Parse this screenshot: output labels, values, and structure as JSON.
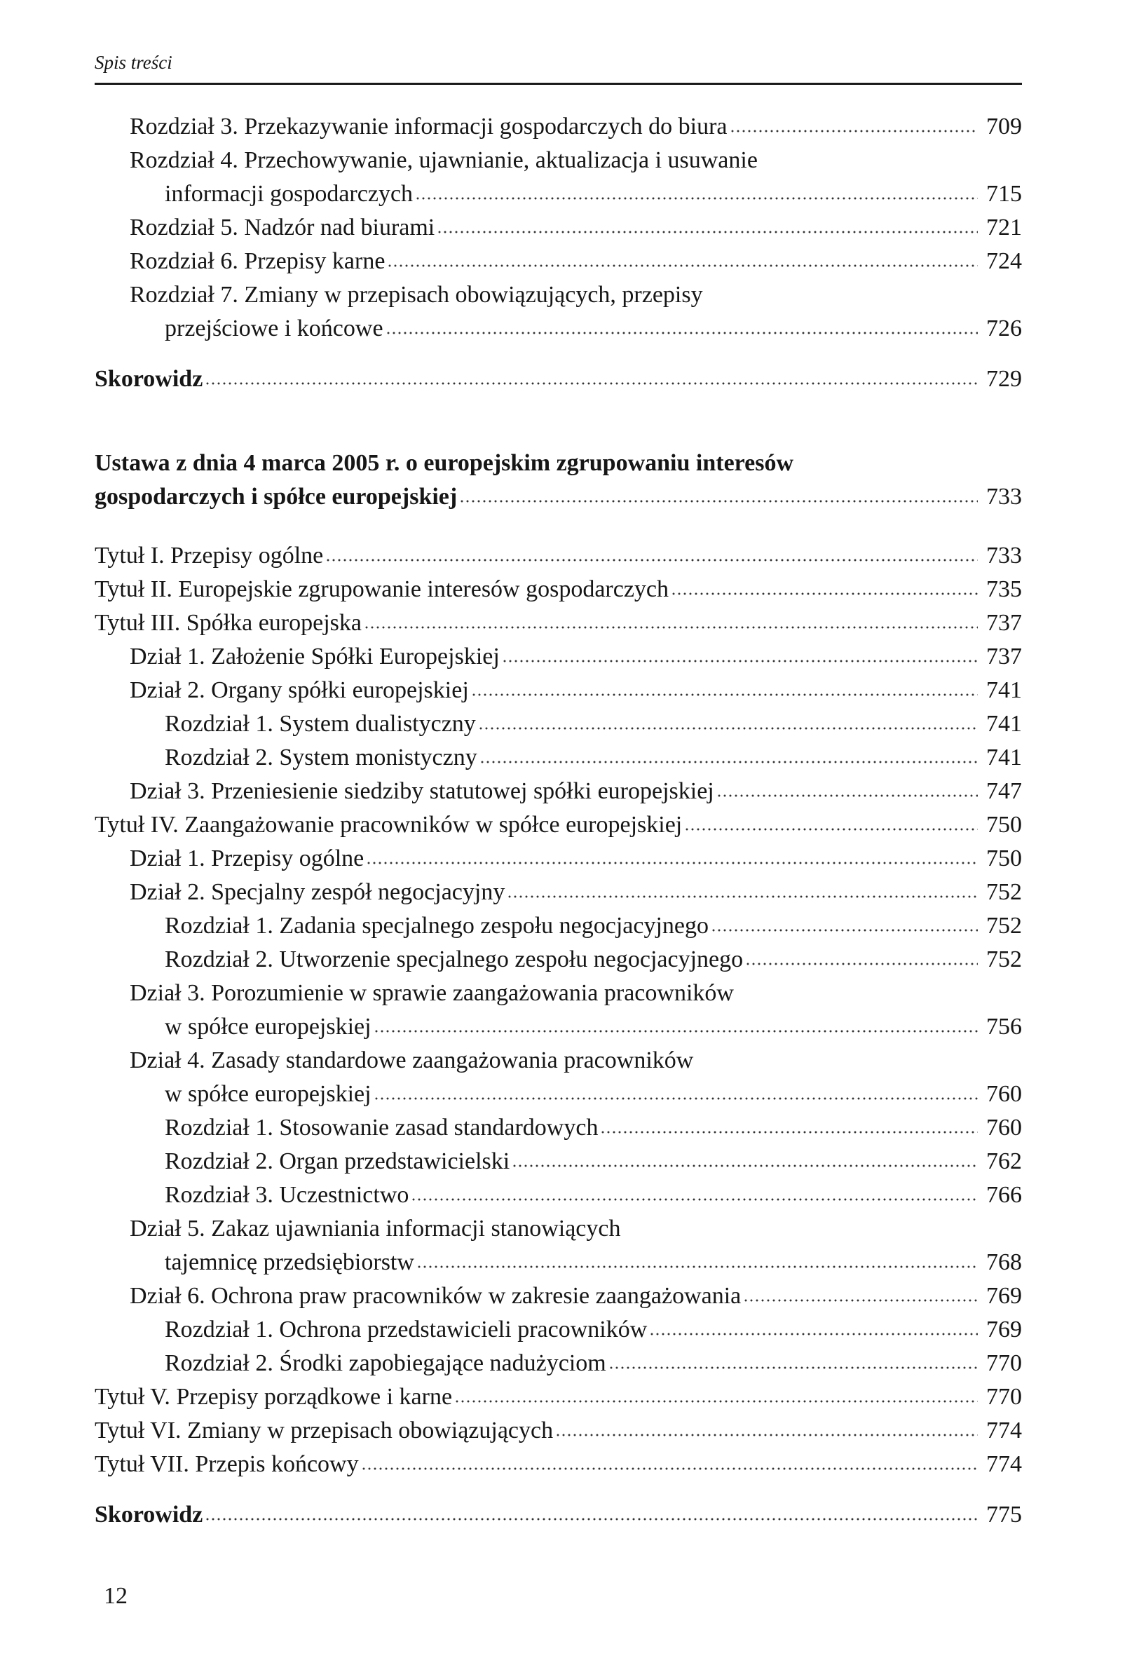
{
  "running_head": "Spis treści",
  "page_number": "12",
  "entries": [
    {
      "text": "Rozdział 3. Przekazywanie informacji gospodarczych do biura",
      "page": "709",
      "level": 1
    },
    {
      "text": "Rozdział 4. Przechowywanie, ujawnianie, aktualizacja i usuwanie",
      "page": "",
      "level": 1
    },
    {
      "text": "informacji gospodarczych",
      "page": "715",
      "level": 2
    },
    {
      "text": "Rozdział 5. Nadzór nad biurami",
      "page": "721",
      "level": 1
    },
    {
      "text": "Rozdział 6. Przepisy karne",
      "page": "724",
      "level": 1
    },
    {
      "text": "Rozdział 7. Zmiany w przepisach obowiązujących, przepisy",
      "page": "",
      "level": 1
    },
    {
      "text": "przejściowe i końcowe",
      "page": "726",
      "level": 2
    },
    {
      "text": "Skorowidz",
      "page": "729",
      "level": 0,
      "bold": true,
      "gap": "s"
    },
    {
      "text": "Ustawa z dnia 4 marca 2005 r. o europejskim zgrupowaniu interesów",
      "page": "",
      "level": 0,
      "bold": true,
      "gap": "m"
    },
    {
      "text": "gospodarczych i spółce europejskiej",
      "page": "733",
      "level": 0,
      "bold": true
    },
    {
      "text": "Tytuł I. Przepisy ogólne",
      "page": "733",
      "level": 0,
      "gap": "x"
    },
    {
      "text": "Tytuł II. Europejskie zgrupowanie interesów gospodarczych",
      "page": "735",
      "level": 0
    },
    {
      "text": "Tytuł III. Spółka europejska",
      "page": "737",
      "level": 0
    },
    {
      "text": "Dział 1. Założenie Spółki Europejskiej",
      "page": "737",
      "level": 1
    },
    {
      "text": "Dział 2. Organy spółki europejskiej",
      "page": "741",
      "level": 1
    },
    {
      "text": "Rozdział 1. System dualistyczny",
      "page": "741",
      "level": 2
    },
    {
      "text": "Rozdział 2. System monistyczny",
      "page": "741",
      "level": 2
    },
    {
      "text": "Dział 3. Przeniesienie siedziby statutowej spółki europejskiej",
      "page": "747",
      "level": 1
    },
    {
      "text": "Tytuł IV. Zaangażowanie pracowników w spółce europejskiej",
      "page": "750",
      "level": 0
    },
    {
      "text": "Dział 1. Przepisy ogólne",
      "page": "750",
      "level": 1
    },
    {
      "text": "Dział 2. Specjalny zespół negocjacyjny",
      "page": "752",
      "level": 1
    },
    {
      "text": "Rozdział 1. Zadania specjalnego zespołu negocjacyjnego",
      "page": "752",
      "level": 2
    },
    {
      "text": "Rozdział 2. Utworzenie specjalnego zespołu negocjacyjnego",
      "page": "752",
      "level": 2
    },
    {
      "text": "Dział 3. Porozumienie w sprawie zaangażowania pracowników",
      "page": "",
      "level": 1
    },
    {
      "text": "w spółce europejskiej",
      "page": "756",
      "level": 2
    },
    {
      "text": "Dział 4. Zasady standardowe zaangażowania pracowników",
      "page": "",
      "level": 1
    },
    {
      "text": "w spółce europejskiej",
      "page": "760",
      "level": 2
    },
    {
      "text": "Rozdział 1. Stosowanie zasad standardowych",
      "page": "760",
      "level": 2
    },
    {
      "text": "Rozdział 2. Organ przedstawicielski",
      "page": "762",
      "level": 2
    },
    {
      "text": "Rozdział 3. Uczestnictwo",
      "page": "766",
      "level": 2
    },
    {
      "text": "Dział 5. Zakaz ujawniania informacji stanowiących",
      "page": "",
      "level": 1
    },
    {
      "text": "tajemnicę przedsiębiorstw",
      "page": "768",
      "level": 2
    },
    {
      "text": "Dział 6. Ochrona praw pracowników w zakresie zaangażowania",
      "page": "769",
      "level": 1
    },
    {
      "text": "Rozdział 1. Ochrona przedstawicieli pracowników",
      "page": "769",
      "level": 2
    },
    {
      "text": "Rozdział 2. Środki zapobiegające nadużyciom",
      "page": "770",
      "level": 2
    },
    {
      "text": "Tytuł V. Przepisy porządkowe i karne",
      "page": "770",
      "level": 0
    },
    {
      "text": "Tytuł VI. Zmiany w przepisach obowiązujących",
      "page": "774",
      "level": 0
    },
    {
      "text": "Tytuł VII. Przepis końcowy",
      "page": "774",
      "level": 0
    },
    {
      "text": "Skorowidz",
      "page": "775",
      "level": 0,
      "bold": true,
      "gap": "s"
    }
  ]
}
